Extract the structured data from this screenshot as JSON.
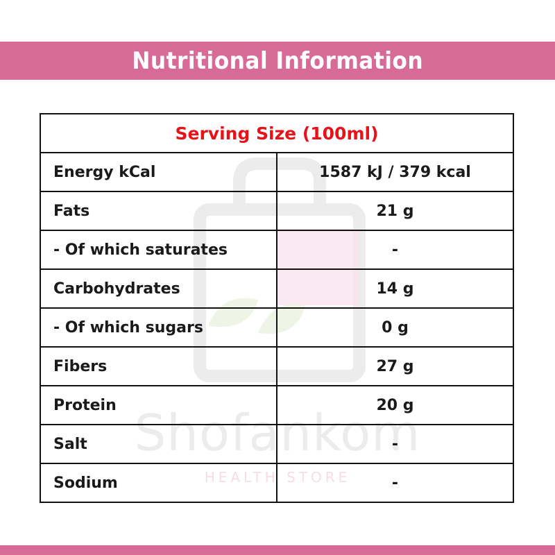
{
  "header": {
    "title": "Nutritional Information"
  },
  "watermark": {
    "brand": "Shofankom",
    "sub": "HEALTH STORE"
  },
  "table": {
    "serving": "Serving Size (100ml)",
    "rows": [
      {
        "label": "Energy kCal",
        "value": "1587 kJ / 379 kcal"
      },
      {
        "label": "Fats",
        "value": "21 g"
      },
      {
        "label": "- Of which saturates",
        "value": "-"
      },
      {
        "label": "Carbohydrates",
        "value": "14 g"
      },
      {
        "label": "- Of which sugars",
        "value": "0 g"
      },
      {
        "label": "Fibers",
        "value": "27 g"
      },
      {
        "label": "Protein",
        "value": "20 g"
      },
      {
        "label": "Salt",
        "value": "-"
      },
      {
        "label": "Sodium",
        "value": "-"
      }
    ]
  },
  "colors": {
    "band": "#d86a97",
    "serving_text": "#e4141a",
    "border": "#111111"
  }
}
